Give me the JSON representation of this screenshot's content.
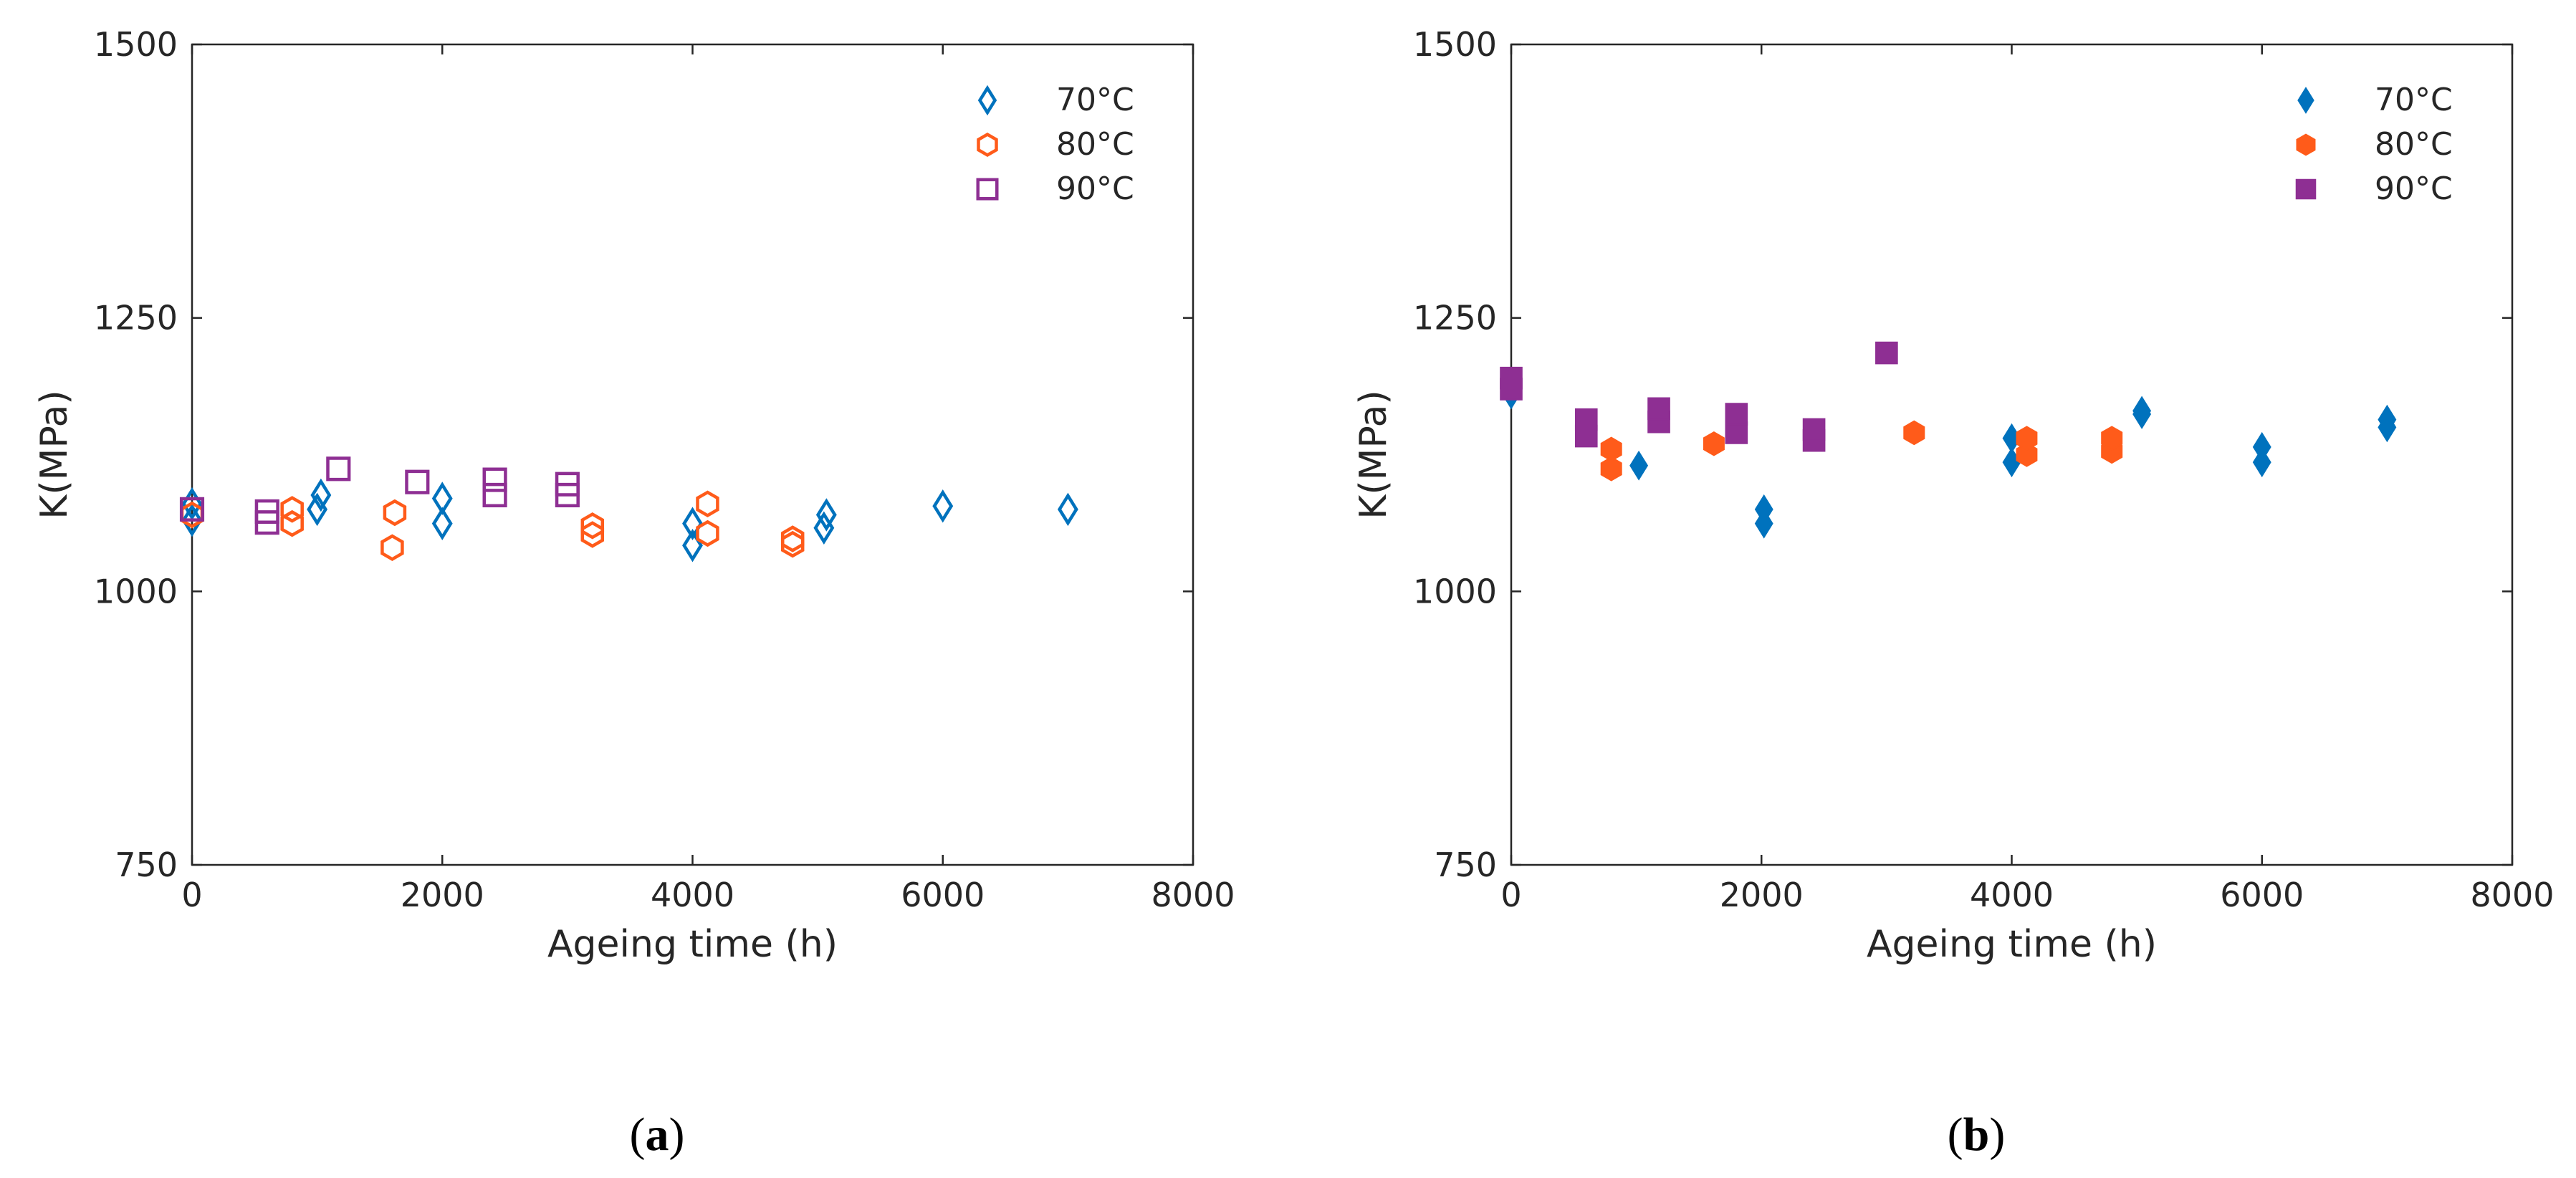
{
  "chart_data": [
    {
      "panel": "a",
      "caption": {
        "open": "(",
        "letter": "a",
        "close": ")"
      },
      "type": "scatter",
      "marker_fill": "none",
      "xlabel": "Ageing time (h)",
      "ylabel": "K(MPa)",
      "xlim": [
        0,
        8000
      ],
      "ylim": [
        750,
        1500
      ],
      "xticks": [
        0,
        2000,
        4000,
        6000,
        8000
      ],
      "yticks": [
        750,
        1000,
        1250,
        1500
      ],
      "xtick_labels": [
        "0",
        "2000",
        "4000",
        "6000",
        "8000"
      ],
      "ytick_labels": [
        "750",
        "1000",
        "1250",
        "1500"
      ],
      "legend_position": "top-right",
      "series": [
        {
          "name": "70°C",
          "marker": "diamond",
          "color": "#0072BD",
          "points": [
            [
              0,
              1065
            ],
            [
              0,
              1080
            ],
            [
              1000,
              1075
            ],
            [
              1030,
              1088
            ],
            [
              2000,
              1062
            ],
            [
              2000,
              1085
            ],
            [
              4000,
              1042
            ],
            [
              4000,
              1062
            ],
            [
              5050,
              1058
            ],
            [
              5070,
              1070
            ],
            [
              6000,
              1078
            ],
            [
              7000,
              1075
            ]
          ]
        },
        {
          "name": "80°C",
          "marker": "hexagon",
          "color": "#FF5B1A",
          "points": [
            [
              0,
              1070
            ],
            [
              800,
              1062
            ],
            [
              800,
              1075
            ],
            [
              1600,
              1040
            ],
            [
              1620,
              1072
            ],
            [
              3200,
              1052
            ],
            [
              3200,
              1060
            ],
            [
              4120,
              1053
            ],
            [
              4120,
              1080
            ],
            [
              4800,
              1043
            ],
            [
              4800,
              1048
            ]
          ]
        },
        {
          "name": "90°C",
          "marker": "square",
          "color": "#8E2F93",
          "points": [
            [
              0,
              1075
            ],
            [
              600,
              1063
            ],
            [
              600,
              1073
            ],
            [
              1170,
              1112
            ],
            [
              1800,
              1100
            ],
            [
              2420,
              1088
            ],
            [
              2420,
              1102
            ],
            [
              3000,
              1088
            ],
            [
              3000,
              1098
            ]
          ]
        }
      ]
    },
    {
      "panel": "b",
      "caption": {
        "open": "(",
        "letter": "b",
        "close": ")"
      },
      "type": "scatter",
      "marker_fill": "filled",
      "xlabel": "Ageing time (h)",
      "ylabel": "K(MPa)",
      "xlim": [
        0,
        8000
      ],
      "ylim": [
        750,
        1500
      ],
      "xticks": [
        0,
        2000,
        4000,
        6000,
        8000
      ],
      "yticks": [
        750,
        1000,
        1250,
        1500
      ],
      "xtick_labels": [
        "0",
        "2000",
        "4000",
        "6000",
        "8000"
      ],
      "ytick_labels": [
        "750",
        "1000",
        "1250",
        "1500"
      ],
      "legend_position": "top-right",
      "series": [
        {
          "name": "70°C",
          "marker": "diamond",
          "color": "#0072BD",
          "points": [
            [
              0,
              1180
            ],
            [
              1020,
              1115
            ],
            [
              2020,
              1062
            ],
            [
              2020,
              1075
            ],
            [
              4000,
              1118
            ],
            [
              4000,
              1140
            ],
            [
              5040,
              1162
            ],
            [
              5040,
              1165
            ],
            [
              6000,
              1118
            ],
            [
              6000,
              1132
            ],
            [
              7000,
              1150
            ],
            [
              7000,
              1157
            ]
          ]
        },
        {
          "name": "80°C",
          "marker": "hexagon",
          "color": "#FF5B1A",
          "points": [
            [
              800,
              1112
            ],
            [
              800,
              1130
            ],
            [
              1620,
              1135
            ],
            [
              3220,
              1145
            ],
            [
              4120,
              1125
            ],
            [
              4120,
              1140
            ],
            [
              4800,
              1128
            ],
            [
              4800,
              1140
            ]
          ]
        },
        {
          "name": "90°C",
          "marker": "square",
          "color": "#8E2F93",
          "points": [
            [
              0,
              1185
            ],
            [
              0,
              1195
            ],
            [
              600,
              1142
            ],
            [
              600,
              1157
            ],
            [
              1180,
              1155
            ],
            [
              1180,
              1167
            ],
            [
              1800,
              1145
            ],
            [
              1800,
              1162
            ],
            [
              2420,
              1138
            ],
            [
              2420,
              1148
            ],
            [
              3000,
              1218
            ]
          ]
        }
      ]
    }
  ]
}
